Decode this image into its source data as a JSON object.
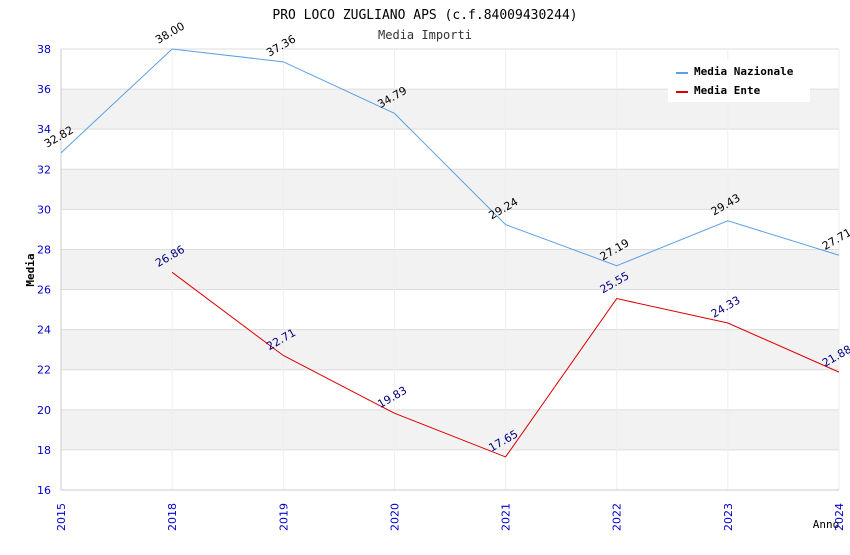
{
  "chart_data": {
    "type": "line",
    "title": "PRO LOCO ZUGLIANO APS (c.f.84009430244)",
    "subtitle": "Media Importi",
    "xlabel": "Anno",
    "ylabel": "Media",
    "categories": [
      "2015",
      "2018",
      "2019",
      "2020",
      "2021",
      "2022",
      "2023",
      "2024"
    ],
    "ylim": [
      16,
      38
    ],
    "yticks": [
      16,
      18,
      20,
      22,
      24,
      26,
      28,
      30,
      32,
      34,
      36,
      38
    ],
    "legend_position": "top-right",
    "grid": true,
    "series": [
      {
        "name": "Media Nazionale",
        "color": "#5aa0e6",
        "values": [
          32.82,
          38.0,
          37.36,
          34.79,
          29.24,
          27.19,
          29.43,
          27.71
        ],
        "labels": [
          "32.82",
          "38.00",
          "37.36",
          "34.79",
          "29.24",
          "27.19",
          "29.43",
          "27.71"
        ]
      },
      {
        "name": "Media Ente",
        "color": "#dd0000",
        "values": [
          null,
          26.86,
          22.71,
          19.83,
          17.65,
          25.55,
          24.33,
          21.88
        ],
        "labels": [
          null,
          "26.86",
          "22.71",
          "19.83",
          "17.65",
          "25.55",
          "24.33",
          "21.88"
        ]
      }
    ]
  }
}
